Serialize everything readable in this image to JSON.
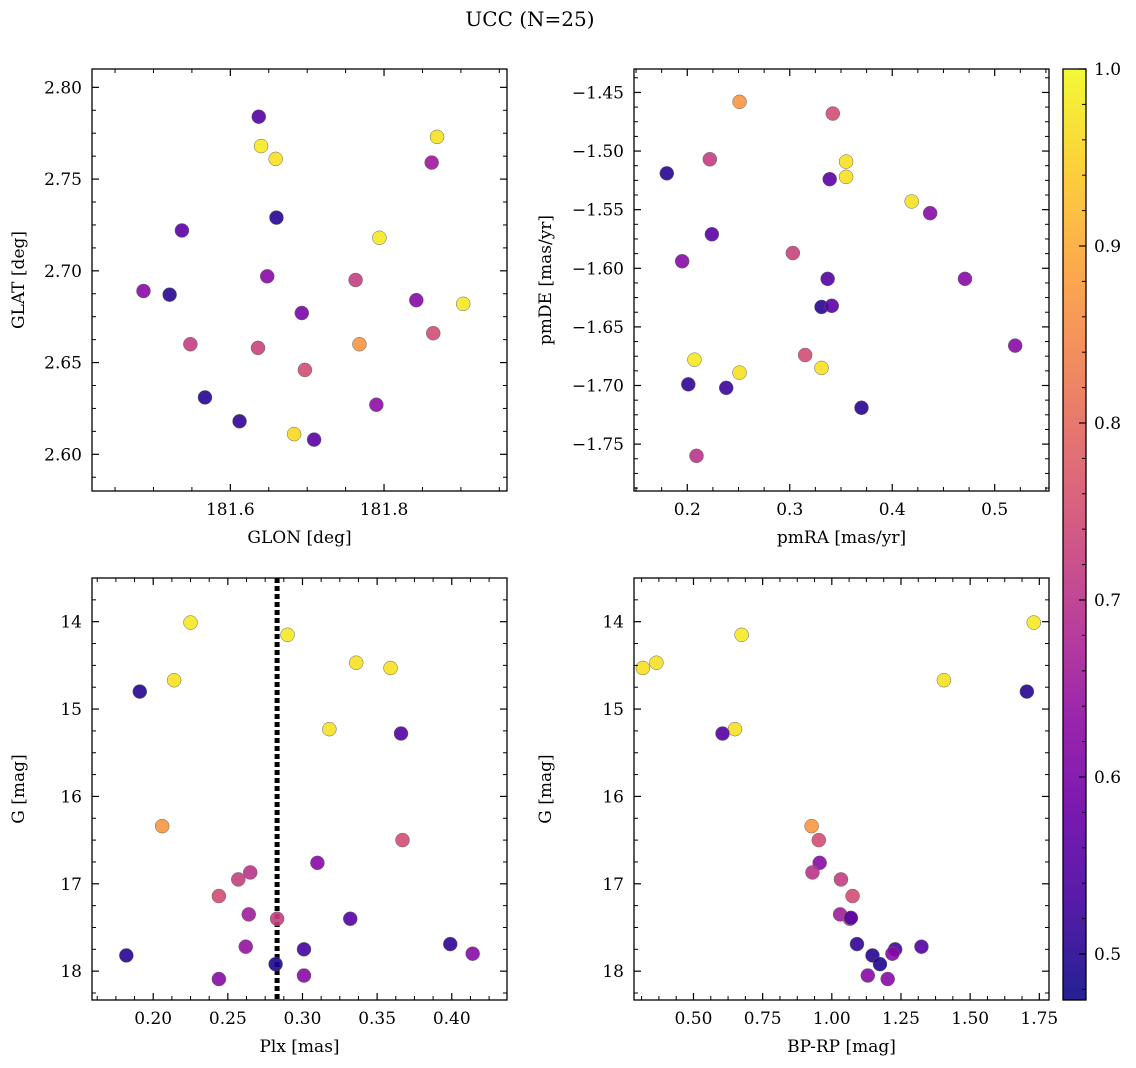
{
  "title": "UCC (N=25)",
  "colorbar": {
    "min": 0.474,
    "max": 1.0,
    "ticks": [
      0.5,
      0.6,
      0.7,
      0.8,
      0.9,
      1.0
    ],
    "tick_labels": [
      "0.5",
      "0.6",
      "0.7",
      "0.8",
      "0.9",
      "1.0"
    ],
    "colormap": "plasma"
  },
  "chart_data": [
    {
      "type": "scatter",
      "xlabel": "GLON [deg]",
      "ylabel": "GLAT [deg]",
      "xlim": [
        181.42,
        181.96
      ],
      "ylim": [
        2.58,
        2.81
      ],
      "xticks": [
        181.6,
        181.8
      ],
      "xtick_labels": [
        "181.6",
        "181.8"
      ],
      "yticks": [
        2.6,
        2.65,
        2.7,
        2.75,
        2.8
      ],
      "ytick_labels": [
        "2.60",
        "2.65",
        "2.70",
        "2.75",
        "2.80"
      ],
      "points": [
        {
          "x": 181.637,
          "y": 2.784,
          "c": 0.55
        },
        {
          "x": 181.64,
          "y": 2.768,
          "c": 0.98
        },
        {
          "x": 181.659,
          "y": 2.761,
          "c": 0.97
        },
        {
          "x": 181.869,
          "y": 2.773,
          "c": 0.97
        },
        {
          "x": 181.862,
          "y": 2.759,
          "c": 0.65
        },
        {
          "x": 181.66,
          "y": 2.729,
          "c": 0.5
        },
        {
          "x": 181.537,
          "y": 2.722,
          "c": 0.56
        },
        {
          "x": 181.794,
          "y": 2.718,
          "c": 0.98
        },
        {
          "x": 181.648,
          "y": 2.697,
          "c": 0.62
        },
        {
          "x": 181.763,
          "y": 2.695,
          "c": 0.72
        },
        {
          "x": 181.487,
          "y": 2.689,
          "c": 0.62
        },
        {
          "x": 181.521,
          "y": 2.687,
          "c": 0.5
        },
        {
          "x": 181.842,
          "y": 2.684,
          "c": 0.62
        },
        {
          "x": 181.903,
          "y": 2.682,
          "c": 0.98
        },
        {
          "x": 181.693,
          "y": 2.677,
          "c": 0.6
        },
        {
          "x": 181.864,
          "y": 2.666,
          "c": 0.75
        },
        {
          "x": 181.548,
          "y": 2.66,
          "c": 0.72
        },
        {
          "x": 181.768,
          "y": 2.66,
          "c": 0.87
        },
        {
          "x": 181.636,
          "y": 2.658,
          "c": 0.73
        },
        {
          "x": 181.697,
          "y": 2.646,
          "c": 0.75
        },
        {
          "x": 181.567,
          "y": 2.631,
          "c": 0.5
        },
        {
          "x": 181.79,
          "y": 2.627,
          "c": 0.63
        },
        {
          "x": 181.612,
          "y": 2.618,
          "c": 0.51
        },
        {
          "x": 181.683,
          "y": 2.611,
          "c": 0.96
        },
        {
          "x": 181.709,
          "y": 2.608,
          "c": 0.56
        }
      ]
    },
    {
      "type": "scatter",
      "xlabel": "pmRA [mas/yr]",
      "ylabel": "pmDE [mas/yr]",
      "xlim": [
        0.148,
        0.553
      ],
      "ylim": [
        -1.79,
        -1.43
      ],
      "xticks": [
        0.2,
        0.3,
        0.4,
        0.5
      ],
      "xtick_labels": [
        "0.2",
        "0.3",
        "0.4",
        "0.5"
      ],
      "yticks": [
        -1.45,
        -1.5,
        -1.55,
        -1.6,
        -1.65,
        -1.7,
        -1.75
      ],
      "ytick_labels": [
        "−1.45",
        "−1.50",
        "−1.55",
        "−1.60",
        "−1.65",
        "−1.70",
        "−1.75"
      ],
      "points": [
        {
          "x": 0.251,
          "y": -1.458,
          "c": 0.87
        },
        {
          "x": 0.342,
          "y": -1.468,
          "c": 0.75
        },
        {
          "x": 0.18,
          "y": -1.519,
          "c": 0.5
        },
        {
          "x": 0.222,
          "y": -1.507,
          "c": 0.72
        },
        {
          "x": 0.355,
          "y": -1.509,
          "c": 0.97
        },
        {
          "x": 0.355,
          "y": -1.522,
          "c": 0.97
        },
        {
          "x": 0.339,
          "y": -1.524,
          "c": 0.56
        },
        {
          "x": 0.419,
          "y": -1.543,
          "c": 0.97
        },
        {
          "x": 0.437,
          "y": -1.553,
          "c": 0.62
        },
        {
          "x": 0.224,
          "y": -1.571,
          "c": 0.56
        },
        {
          "x": 0.195,
          "y": -1.594,
          "c": 0.62
        },
        {
          "x": 0.303,
          "y": -1.587,
          "c": 0.73
        },
        {
          "x": 0.337,
          "y": -1.609,
          "c": 0.55
        },
        {
          "x": 0.471,
          "y": -1.609,
          "c": 0.62
        },
        {
          "x": 0.331,
          "y": -1.633,
          "c": 0.5
        },
        {
          "x": 0.341,
          "y": -1.632,
          "c": 0.56
        },
        {
          "x": 0.52,
          "y": -1.666,
          "c": 0.62
        },
        {
          "x": 0.315,
          "y": -1.674,
          "c": 0.75
        },
        {
          "x": 0.207,
          "y": -1.678,
          "c": 0.98
        },
        {
          "x": 0.251,
          "y": -1.689,
          "c": 0.97
        },
        {
          "x": 0.331,
          "y": -1.685,
          "c": 0.97
        },
        {
          "x": 0.201,
          "y": -1.699,
          "c": 0.51
        },
        {
          "x": 0.238,
          "y": -1.702,
          "c": 0.52
        },
        {
          "x": 0.37,
          "y": -1.719,
          "c": 0.5
        },
        {
          "x": 0.209,
          "y": -1.76,
          "c": 0.7
        }
      ]
    },
    {
      "type": "scatter",
      "xlabel": "Plx [mas]",
      "ylabel": "G [mag]",
      "xlim": [
        0.159,
        0.437
      ],
      "ylim": [
        18.33,
        13.5
      ],
      "y_inverted": true,
      "vline": 0.283,
      "xticks": [
        0.2,
        0.25,
        0.3,
        0.35,
        0.4
      ],
      "xtick_labels": [
        "0.20",
        "0.25",
        "0.30",
        "0.35",
        "0.40"
      ],
      "yticks": [
        14,
        15,
        16,
        17,
        18
      ],
      "ytick_labels": [
        "14",
        "15",
        "16",
        "17",
        "18"
      ],
      "points": [
        {
          "x": 0.225,
          "y": 14.01,
          "c": 0.98
        },
        {
          "x": 0.29,
          "y": 14.15,
          "c": 0.98
        },
        {
          "x": 0.336,
          "y": 14.47,
          "c": 0.97
        },
        {
          "x": 0.359,
          "y": 14.53,
          "c": 0.97
        },
        {
          "x": 0.214,
          "y": 14.67,
          "c": 0.97
        },
        {
          "x": 0.191,
          "y": 14.8,
          "c": 0.5
        },
        {
          "x": 0.318,
          "y": 15.23,
          "c": 0.97
        },
        {
          "x": 0.366,
          "y": 15.28,
          "c": 0.55
        },
        {
          "x": 0.206,
          "y": 16.34,
          "c": 0.87
        },
        {
          "x": 0.367,
          "y": 16.5,
          "c": 0.75
        },
        {
          "x": 0.31,
          "y": 16.76,
          "c": 0.62
        },
        {
          "x": 0.265,
          "y": 16.87,
          "c": 0.7
        },
        {
          "x": 0.257,
          "y": 16.95,
          "c": 0.72
        },
        {
          "x": 0.244,
          "y": 17.14,
          "c": 0.75
        },
        {
          "x": 0.264,
          "y": 17.35,
          "c": 0.66
        },
        {
          "x": 0.283,
          "y": 17.4,
          "c": 0.72
        },
        {
          "x": 0.332,
          "y": 17.4,
          "c": 0.55
        },
        {
          "x": 0.262,
          "y": 17.72,
          "c": 0.64
        },
        {
          "x": 0.301,
          "y": 17.75,
          "c": 0.53
        },
        {
          "x": 0.399,
          "y": 17.69,
          "c": 0.51
        },
        {
          "x": 0.414,
          "y": 17.8,
          "c": 0.62
        },
        {
          "x": 0.182,
          "y": 17.82,
          "c": 0.5
        },
        {
          "x": 0.282,
          "y": 17.92,
          "c": 0.49
        },
        {
          "x": 0.301,
          "y": 18.05,
          "c": 0.62
        },
        {
          "x": 0.244,
          "y": 18.09,
          "c": 0.62
        }
      ]
    },
    {
      "type": "scatter",
      "xlabel": "BP-RP [mag]",
      "ylabel": "G [mag]",
      "xlim": [
        0.285,
        1.785
      ],
      "ylim": [
        18.33,
        13.5
      ],
      "y_inverted": true,
      "xticks": [
        0.5,
        0.75,
        1.0,
        1.25,
        1.5,
        1.75
      ],
      "xtick_labels": [
        "0.50",
        "0.75",
        "1.00",
        "1.25",
        "1.50",
        "1.75"
      ],
      "yticks": [
        14,
        15,
        16,
        17,
        18
      ],
      "ytick_labels": [
        "14",
        "15",
        "16",
        "17",
        "18"
      ],
      "points": [
        {
          "x": 1.73,
          "y": 14.01,
          "c": 0.98
        },
        {
          "x": 0.674,
          "y": 14.15,
          "c": 0.98
        },
        {
          "x": 0.366,
          "y": 14.47,
          "c": 0.97
        },
        {
          "x": 0.317,
          "y": 14.53,
          "c": 0.97
        },
        {
          "x": 1.405,
          "y": 14.67,
          "c": 0.97
        },
        {
          "x": 1.705,
          "y": 14.8,
          "c": 0.5
        },
        {
          "x": 0.65,
          "y": 15.23,
          "c": 0.97
        },
        {
          "x": 0.605,
          "y": 15.28,
          "c": 0.55
        },
        {
          "x": 0.927,
          "y": 16.34,
          "c": 0.87
        },
        {
          "x": 0.953,
          "y": 16.5,
          "c": 0.75
        },
        {
          "x": 0.956,
          "y": 16.76,
          "c": 0.62
        },
        {
          "x": 0.93,
          "y": 16.87,
          "c": 0.7
        },
        {
          "x": 1.033,
          "y": 16.95,
          "c": 0.72
        },
        {
          "x": 1.075,
          "y": 17.14,
          "c": 0.75
        },
        {
          "x": 1.03,
          "y": 17.35,
          "c": 0.66
        },
        {
          "x": 1.065,
          "y": 17.4,
          "c": 0.72
        },
        {
          "x": 1.069,
          "y": 17.39,
          "c": 0.55
        },
        {
          "x": 1.091,
          "y": 17.69,
          "c": 0.51
        },
        {
          "x": 1.324,
          "y": 17.72,
          "c": 0.55
        },
        {
          "x": 1.229,
          "y": 17.75,
          "c": 0.53
        },
        {
          "x": 1.219,
          "y": 17.8,
          "c": 0.62
        },
        {
          "x": 1.147,
          "y": 17.82,
          "c": 0.5
        },
        {
          "x": 1.174,
          "y": 17.92,
          "c": 0.49
        },
        {
          "x": 1.13,
          "y": 18.05,
          "c": 0.62
        },
        {
          "x": 1.202,
          "y": 18.09,
          "c": 0.62
        }
      ]
    }
  ]
}
